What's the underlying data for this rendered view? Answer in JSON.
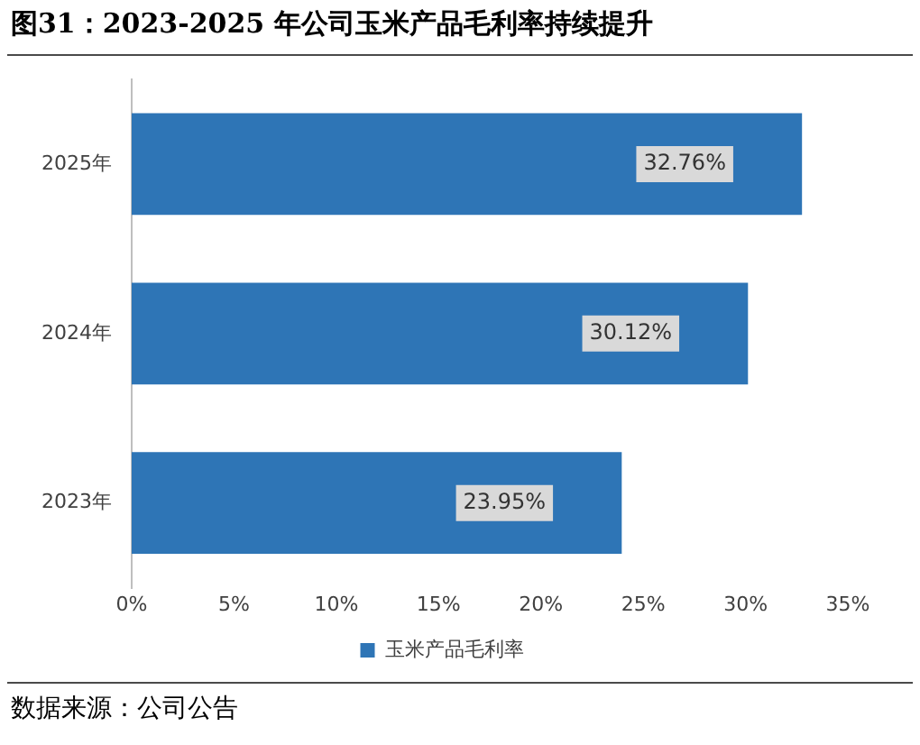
{
  "chart_data": {
    "type": "bar",
    "orientation": "horizontal",
    "title": "图31：2023-2025 年公司玉米产品毛利率持续提升",
    "categories": [
      "2025年",
      "2024年",
      "2023年"
    ],
    "series": [
      {
        "name": "玉米产品毛利率",
        "color": "#2e75b6",
        "values": [
          32.76,
          30.12,
          23.95
        ],
        "value_labels": [
          "32.76%",
          "30.12%",
          "23.95%"
        ]
      }
    ],
    "xlim": [
      0,
      35
    ],
    "xticks": [
      {
        "value": 0,
        "label": "0%"
      },
      {
        "value": 5,
        "label": "5%"
      },
      {
        "value": 10,
        "label": "10%"
      },
      {
        "value": 15,
        "label": "15%"
      },
      {
        "value": 20,
        "label": "20%"
      },
      {
        "value": 25,
        "label": "25%"
      },
      {
        "value": 30,
        "label": "30%"
      },
      {
        "value": 35,
        "label": "35%"
      }
    ],
    "legend": "bottom",
    "grid": false,
    "annotations": [
      "数据来源：公司公告"
    ]
  }
}
